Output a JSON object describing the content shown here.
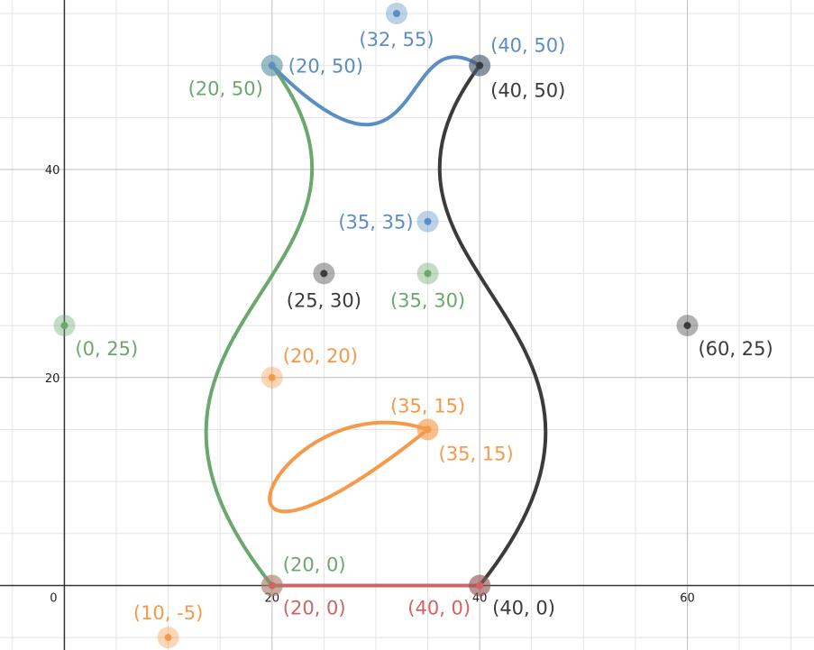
{
  "chart_data": {
    "type": "scatter",
    "xlim": [
      -6.2,
      72.2
    ],
    "ylim": [
      -6.2,
      56.3
    ],
    "grid": true,
    "minor_grid_step": 5,
    "major_grid_step": 20,
    "x_tick_labels": [
      {
        "value": 0,
        "text": "0"
      },
      {
        "value": 20,
        "text": "20"
      },
      {
        "value": 40,
        "text": "40"
      },
      {
        "value": 60,
        "text": "60"
      }
    ],
    "y_tick_labels": [
      {
        "value": 20,
        "text": "20"
      },
      {
        "value": 40,
        "text": "40"
      }
    ],
    "colors": {
      "green": "#6aa86e",
      "blue": "#5b8ec4",
      "orange": "#f59a4a",
      "black": "#3b3b3b",
      "red": "#cf6464"
    },
    "curves": [
      {
        "id": "green-curve",
        "color": "green",
        "points": [
          [
            20,
            0
          ],
          [
            0,
            25
          ],
          [
            35,
            30
          ],
          [
            20,
            50
          ]
        ]
      },
      {
        "id": "blue-curve",
        "color": "blue",
        "points": [
          [
            20,
            50
          ],
          [
            35,
            35
          ],
          [
            32,
            55
          ],
          [
            40,
            50
          ]
        ]
      },
      {
        "id": "black-curve",
        "color": "black",
        "points": [
          [
            40,
            50
          ],
          [
            25,
            30
          ],
          [
            60,
            25
          ],
          [
            40,
            0
          ]
        ]
      },
      {
        "id": "orange-loop",
        "color": "orange",
        "points": [
          [
            35,
            15
          ],
          [
            20,
            20
          ],
          [
            10,
            -5
          ],
          [
            35,
            15
          ]
        ]
      },
      {
        "id": "red-segment",
        "color": "red",
        "points": [
          [
            20,
            0
          ],
          [
            40,
            0
          ]
        ]
      }
    ],
    "points": [
      {
        "x": 0,
        "y": 25,
        "label": "(0, 25)",
        "color": "green"
      },
      {
        "x": 35,
        "y": 30,
        "label": "(35, 30)",
        "color": "green"
      },
      {
        "x": 20,
        "y": 50,
        "label": "(20, 50)",
        "color": "green"
      },
      {
        "x": 20,
        "y": 0,
        "label": "(20, 0)",
        "color": "green"
      },
      {
        "x": 20,
        "y": 50,
        "label": "(20, 50)",
        "color": "blue"
      },
      {
        "x": 35,
        "y": 35,
        "label": "(35, 35)",
        "color": "blue"
      },
      {
        "x": 32,
        "y": 55,
        "label": "(32, 55)",
        "color": "blue"
      },
      {
        "x": 40,
        "y": 50,
        "label": "(40, 50)",
        "color": "blue"
      },
      {
        "x": 40,
        "y": 50,
        "label": "(40, 50)",
        "color": "black"
      },
      {
        "x": 25,
        "y": 30,
        "label": "(25, 30)",
        "color": "black"
      },
      {
        "x": 60,
        "y": 25,
        "label": "(60, 25)",
        "color": "black"
      },
      {
        "x": 40,
        "y": 0,
        "label": "(40, 0)",
        "color": "black"
      },
      {
        "x": 20,
        "y": 20,
        "label": "(20, 20)",
        "color": "orange"
      },
      {
        "x": 35,
        "y": 15,
        "label": "(35, 15)",
        "color": "orange"
      },
      {
        "x": 35,
        "y": 15,
        "label": "(35, 15)",
        "color": "orange"
      },
      {
        "x": 10,
        "y": -5,
        "label": "(10, -5)",
        "color": "orange"
      },
      {
        "x": 20,
        "y": 0,
        "label": "(20, 0)",
        "color": "red"
      },
      {
        "x": 40,
        "y": 0,
        "label": "(40, 0)",
        "color": "red"
      }
    ]
  }
}
